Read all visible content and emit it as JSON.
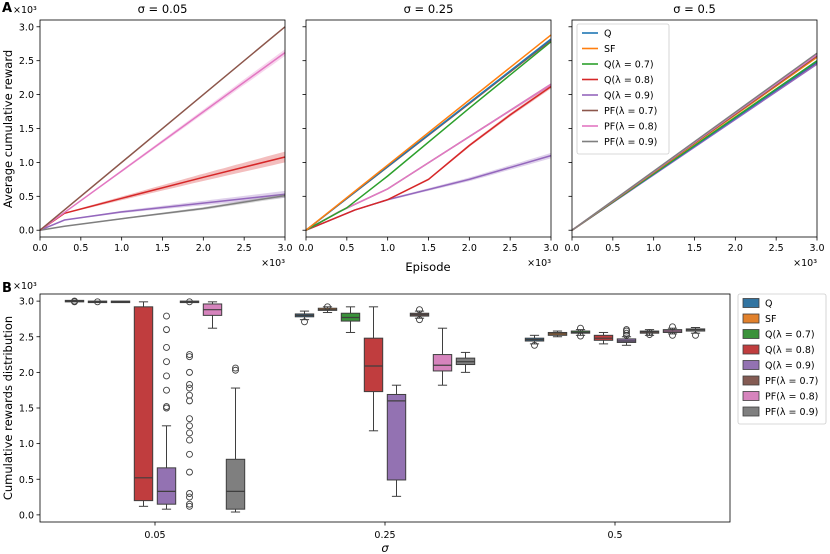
{
  "colors": {
    "Q": "#1f77b4",
    "SF": "#ff7f0e",
    "Q07": "#2ca02c",
    "Q08": "#d62728",
    "Q09": "#9467bd",
    "PF07": "#8c564b",
    "PF08": "#e377c2",
    "PF09": "#7f7f7f"
  },
  "box_colors": {
    "Q": "#3274a1",
    "SF": "#e1812c",
    "Q07": "#3a923a",
    "Q08": "#c03d3e",
    "Q09": "#9372b2",
    "PF07": "#845b53",
    "PF08": "#d684bd",
    "PF09": "#7f7f7f"
  },
  "panel_labels": {
    "a": "A",
    "b": "B"
  },
  "multiplier": "×10³",
  "chart_data": [
    {
      "type": "line",
      "panel": "A",
      "shared": {
        "xlabel": "Episode",
        "ylabel": "Average cumulative reward",
        "xlim": [
          0,
          3.0
        ],
        "ylim": [
          -0.1,
          3.1
        ],
        "xticks": [
          0.0,
          0.5,
          1.0,
          1.5,
          2.0,
          2.5,
          3.0
        ],
        "yticks": [
          0.0,
          0.5,
          1.0,
          1.5,
          2.0,
          2.5,
          3.0
        ],
        "x_multiplier": "×10³",
        "y_multiplier": "×10³"
      },
      "subplots": [
        {
          "title": "σ = 0.05",
          "series": [
            {
              "key": "Q08",
              "x": [
                0,
                0.3,
                1.0,
                2.0,
                3.0
              ],
              "y": [
                0,
                0.25,
                0.47,
                0.78,
                1.08
              ],
              "band": 0.08
            },
            {
              "key": "Q09",
              "x": [
                0,
                0.3,
                1.0,
                2.0,
                3.0
              ],
              "y": [
                0,
                0.15,
                0.27,
                0.4,
                0.53
              ],
              "band": 0.05
            },
            {
              "key": "PF09",
              "x": [
                0,
                0.3,
                1.0,
                2.0,
                3.0
              ],
              "y": [
                0,
                0.06,
                0.17,
                0.32,
                0.51
              ],
              "band": 0.03
            },
            {
              "key": "PF08",
              "x": [
                0,
                3.0
              ],
              "y": [
                0,
                2.62
              ],
              "band": 0.05
            },
            {
              "key": "PF07",
              "x": [
                0,
                3.0
              ],
              "y": [
                0,
                3.0
              ],
              "band": 0.0
            }
          ]
        },
        {
          "title": "σ = 0.25",
          "series": [
            {
              "key": "Q09",
              "x": [
                0,
                0.6,
                1.0,
                2.0,
                3.0
              ],
              "y": [
                0,
                0.3,
                0.45,
                0.75,
                1.1
              ],
              "band": 0.04
            },
            {
              "key": "Q08",
              "x": [
                0,
                0.6,
                1.0,
                1.5,
                2.0,
                2.5,
                3.0
              ],
              "y": [
                0,
                0.3,
                0.45,
                0.75,
                1.25,
                1.7,
                2.12
              ],
              "band": 0.03
            },
            {
              "key": "PF09",
              "x": [
                0,
                0.4,
                1.0,
                2.0,
                3.0
              ],
              "y": [
                0,
                0.27,
                0.61,
                1.38,
                2.15
              ],
              "band": 0.02
            },
            {
              "key": "PF08",
              "x": [
                0,
                0.4,
                1.0,
                2.0,
                3.0
              ],
              "y": [
                0,
                0.27,
                0.61,
                1.38,
                2.15
              ],
              "band": 0.02
            },
            {
              "key": "Q07",
              "x": [
                0,
                0.5,
                1.0,
                2.0,
                3.0
              ],
              "y": [
                0,
                0.33,
                0.8,
                1.8,
                2.78
              ],
              "band": 0.0
            },
            {
              "key": "PF07",
              "x": [
                0,
                3.0
              ],
              "y": [
                0,
                2.8
              ],
              "band": 0.0
            },
            {
              "key": "Q",
              "x": [
                0,
                3.0
              ],
              "y": [
                0,
                2.82
              ],
              "band": 0.0
            },
            {
              "key": "SF",
              "x": [
                0,
                3.0
              ],
              "y": [
                0,
                2.88
              ],
              "band": 0.0
            }
          ]
        },
        {
          "title": "σ = 0.5",
          "series": [
            {
              "key": "Q08",
              "x": [
                0,
                3.0
              ],
              "y": [
                0,
                2.47
              ],
              "band": 0.0
            },
            {
              "key": "Q09",
              "x": [
                0,
                3.0
              ],
              "y": [
                0,
                2.45
              ],
              "band": 0.0
            },
            {
              "key": "Q",
              "x": [
                0,
                3.0
              ],
              "y": [
                0,
                2.48
              ],
              "band": 0.0
            },
            {
              "key": "Q07",
              "x": [
                0,
                3.0
              ],
              "y": [
                0,
                2.5
              ],
              "band": 0.0
            },
            {
              "key": "SF",
              "x": [
                0,
                3.0
              ],
              "y": [
                0,
                2.55
              ],
              "band": 0.0
            },
            {
              "key": "PF07",
              "x": [
                0,
                3.0
              ],
              "y": [
                0,
                2.57
              ],
              "band": 0.0
            },
            {
              "key": "PF08",
              "x": [
                0,
                3.0
              ],
              "y": [
                0,
                2.59
              ],
              "band": 0.0
            },
            {
              "key": "PF09",
              "x": [
                0,
                3.0
              ],
              "y": [
                0,
                2.61
              ],
              "band": 0.0
            }
          ],
          "legend": {
            "placement": "top-left",
            "entries": [
              {
                "key": "Q",
                "label": "Q"
              },
              {
                "key": "SF",
                "label": "SF"
              },
              {
                "key": "Q07",
                "label": "Q(λ = 0.7)"
              },
              {
                "key": "Q08",
                "label": "Q(λ = 0.8)"
              },
              {
                "key": "Q09",
                "label": "Q(λ = 0.9)"
              },
              {
                "key": "PF07",
                "label": "PF(λ = 0.7)"
              },
              {
                "key": "PF08",
                "label": "PF(λ = 0.8)"
              },
              {
                "key": "PF09",
                "label": "PF(λ = 0.9)"
              }
            ]
          }
        }
      ]
    },
    {
      "type": "box",
      "panel": "B",
      "xlabel": "σ",
      "ylabel": "Cumulative rewards distribution",
      "y_multiplier": "×10³",
      "ylim": [
        -0.1,
        3.1
      ],
      "yticks": [
        0.0,
        0.5,
        1.0,
        1.5,
        2.0,
        2.5,
        3.0
      ],
      "categories": [
        "0.05",
        "0.25",
        "0.5"
      ],
      "hue_order": [
        "Q",
        "SF",
        "Q07",
        "Q08",
        "Q09",
        "PF07",
        "PF08",
        "PF09"
      ],
      "legend": {
        "placement": "outside-right",
        "entries": [
          {
            "key": "Q",
            "label": "Q"
          },
          {
            "key": "SF",
            "label": "SF"
          },
          {
            "key": "Q07",
            "label": "Q(λ = 0.7)"
          },
          {
            "key": "Q08",
            "label": "Q(λ = 0.8)"
          },
          {
            "key": "Q09",
            "label": "Q(λ = 0.9)"
          },
          {
            "key": "PF07",
            "label": "PF(λ = 0.7)"
          },
          {
            "key": "PF08",
            "label": "PF(λ = 0.8)"
          },
          {
            "key": "PF09",
            "label": "PF(λ = 0.9)"
          }
        ]
      },
      "groups": [
        {
          "category": "0.05",
          "boxes": [
            {
              "key": "Q",
              "stats": [
                3.0,
                3.0,
                3.0,
                3.0,
                3.0
              ],
              "outliers": [
                2.99,
                3.0
              ]
            },
            {
              "key": "SF",
              "stats": [
                2.99,
                2.99,
                2.99,
                2.99,
                2.99
              ],
              "outliers": [
                2.99
              ]
            },
            {
              "key": "Q07",
              "stats": [
                2.99,
                2.99,
                2.99,
                2.99,
                2.99
              ],
              "outliers": []
            },
            {
              "key": "Q08",
              "stats": [
                0.12,
                0.2,
                0.52,
                2.92,
                2.99
              ],
              "outliers": []
            },
            {
              "key": "Q09",
              "stats": [
                0.08,
                0.15,
                0.33,
                0.66,
                1.25
              ],
              "outliers": [
                1.5,
                1.52,
                1.75,
                1.95,
                2.15,
                2.35,
                2.6,
                2.79
              ]
            },
            {
              "key": "PF07",
              "stats": [
                2.99,
                2.99,
                2.99,
                2.99,
                2.99
              ],
              "outliers": [
                2.99
              ]
            },
            {
              "key": "PF08",
              "stats": [
                2.62,
                2.8,
                2.88,
                2.96,
                2.99
              ],
              "outliers": []
            },
            {
              "key": "PF09",
              "stats": [
                0.04,
                0.08,
                0.33,
                0.78,
                1.78
              ],
              "outliers": [
                2.03,
                2.06
              ]
            }
          ],
          "extra_outliers": [
            {
              "near": "PF08",
              "values": [
                0.12,
                0.15,
                0.25,
                0.3,
                0.6,
                0.85,
                1.05,
                1.15,
                1.25,
                1.35,
                1.6,
                1.68,
                1.78,
                1.83,
                2.0,
                2.22,
                2.25
              ]
            }
          ]
        },
        {
          "category": "0.25",
          "boxes": [
            {
              "key": "Q",
              "stats": [
                2.74,
                2.78,
                2.8,
                2.82,
                2.86
              ],
              "outliers": [
                2.71
              ]
            },
            {
              "key": "SF",
              "stats": [
                2.84,
                2.87,
                2.88,
                2.9,
                2.92
              ],
              "outliers": [
                2.92
              ]
            },
            {
              "key": "Q07",
              "stats": [
                2.56,
                2.72,
                2.77,
                2.83,
                2.92
              ],
              "outliers": []
            },
            {
              "key": "Q08",
              "stats": [
                1.18,
                1.73,
                2.09,
                2.48,
                2.92
              ],
              "outliers": []
            },
            {
              "key": "Q09",
              "stats": [
                0.26,
                0.49,
                1.6,
                1.69,
                1.82
              ],
              "outliers": []
            },
            {
              "key": "PF07",
              "stats": [
                2.76,
                2.79,
                2.81,
                2.83,
                2.86
              ],
              "outliers": [
                2.74,
                2.88
              ]
            },
            {
              "key": "PF08",
              "stats": [
                1.82,
                2.02,
                2.1,
                2.25,
                2.62
              ],
              "outliers": []
            },
            {
              "key": "PF09",
              "stats": [
                2.0,
                2.11,
                2.15,
                2.2,
                2.28
              ],
              "outliers": []
            }
          ]
        },
        {
          "category": "0.5",
          "boxes": [
            {
              "key": "Q",
              "stats": [
                2.4,
                2.44,
                2.46,
                2.48,
                2.52
              ],
              "outliers": [
                2.38
              ]
            },
            {
              "key": "SF",
              "stats": [
                2.5,
                2.52,
                2.54,
                2.56,
                2.58
              ],
              "outliers": []
            },
            {
              "key": "Q07",
              "stats": [
                2.52,
                2.55,
                2.56,
                2.58,
                2.6
              ],
              "outliers": [
                2.51,
                2.62
              ]
            },
            {
              "key": "Q08",
              "stats": [
                2.4,
                2.45,
                2.48,
                2.52,
                2.56
              ],
              "outliers": []
            },
            {
              "key": "Q09",
              "stats": [
                2.38,
                2.42,
                2.44,
                2.47,
                2.5
              ],
              "outliers": [
                2.52,
                2.55,
                2.58,
                2.6
              ]
            },
            {
              "key": "PF07",
              "stats": [
                2.52,
                2.55,
                2.57,
                2.58,
                2.6
              ],
              "outliers": [
                2.53,
                2.56
              ]
            },
            {
              "key": "PF08",
              "stats": [
                2.54,
                2.56,
                2.58,
                2.6,
                2.62
              ],
              "outliers": [
                2.52,
                2.64
              ]
            },
            {
              "key": "PF09",
              "stats": [
                2.55,
                2.58,
                2.6,
                2.61,
                2.63
              ],
              "outliers": [
                2.52
              ]
            }
          ]
        }
      ]
    }
  ]
}
